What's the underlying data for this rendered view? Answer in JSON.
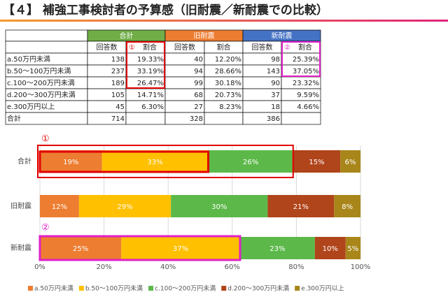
{
  "title": "【４】 補強工事検討者の予算感（旧耐震／新耐震での比較）",
  "table": {
    "groups": [
      "合計",
      "旧耐震",
      "新耐震"
    ],
    "subheaders": [
      "回答数",
      "割合"
    ],
    "rows": [
      {
        "label": "a.50万円未満",
        "cells": [
          138,
          "19.33%",
          40,
          "12.20%",
          98,
          "25.39%"
        ]
      },
      {
        "label": "b.50～100万円未満",
        "cells": [
          237,
          "33.19%",
          94,
          "28.66%",
          143,
          "37.05%"
        ]
      },
      {
        "label": "c.100～200万円未満",
        "cells": [
          189,
          "26.47%",
          99,
          "30.18%",
          90,
          "23.32%"
        ]
      },
      {
        "label": "d.200～300万円未満",
        "cells": [
          105,
          "14.71%",
          68,
          "20.73%",
          37,
          "9.59%"
        ]
      },
      {
        "label": "e.300万円以上",
        "cells": [
          45,
          "6.30%",
          27,
          "8.23%",
          18,
          "4.66%"
        ]
      }
    ],
    "total": {
      "label": "合計",
      "cells": [
        714,
        328,
        386
      ]
    }
  },
  "chart_data": {
    "type": "stacked_bar_horizontal",
    "categories": [
      "合計",
      "旧耐震",
      "新耐震"
    ],
    "series": [
      {
        "name": "a.50万円未満",
        "color": "#ED7D31",
        "values": [
          19.33,
          12.2,
          25.39
        ],
        "value_labels": [
          "19%",
          "12%",
          "25%"
        ]
      },
      {
        "name": "b.50～100万円未満",
        "color": "#FFC000",
        "values": [
          33.19,
          28.66,
          37.05
        ],
        "value_labels": [
          "33%",
          "29%",
          "37%"
        ]
      },
      {
        "name": "c.100～200万円未満",
        "color": "#5DB84A",
        "values": [
          26.47,
          30.18,
          23.32
        ],
        "value_labels": [
          "26%",
          "30%",
          "23%"
        ]
      },
      {
        "name": "d.200～300万円未満",
        "color": "#B0441A",
        "values": [
          14.71,
          20.73,
          9.59
        ],
        "value_labels": [
          "15%",
          "21%",
          "10%"
        ]
      },
      {
        "name": "e.300万円以上",
        "color": "#A8861A",
        "values": [
          6.3,
          8.23,
          4.66
        ],
        "value_labels": [
          "6%",
          "8%",
          "5%"
        ]
      }
    ],
    "xlim": [
      0,
      100
    ],
    "xticks": [
      {
        "value": 0,
        "label": "0%"
      },
      {
        "value": 20,
        "label": "20%"
      },
      {
        "value": 40,
        "label": "40%"
      },
      {
        "value": 60,
        "label": "60%"
      },
      {
        "value": 80,
        "label": "80%"
      },
      {
        "value": 100,
        "label": "100%"
      }
    ],
    "grid": true,
    "annotations": [
      "①",
      "②"
    ]
  }
}
